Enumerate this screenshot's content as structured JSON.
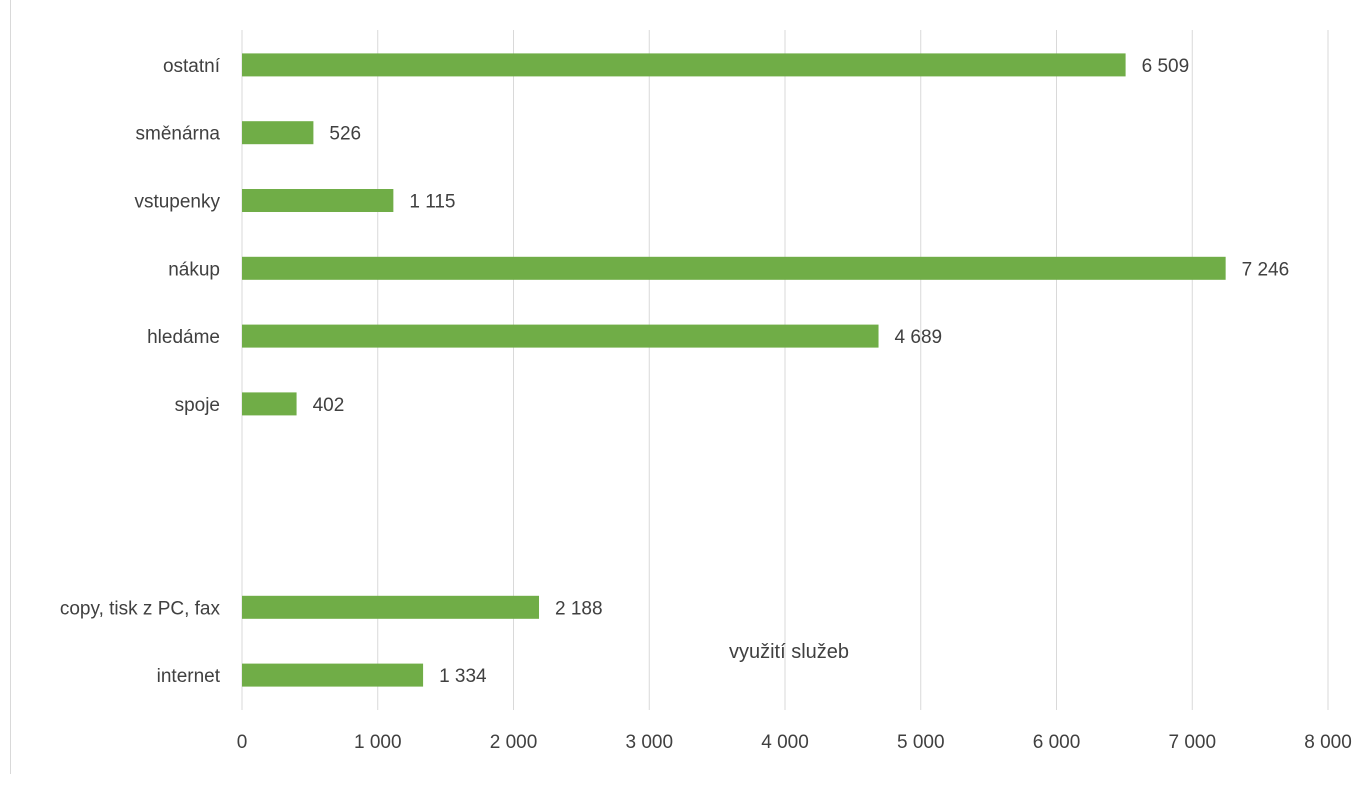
{
  "chart_data": {
    "type": "bar",
    "orientation": "horizontal",
    "categories": [
      "ostatní",
      "směnárna",
      "vstupenky",
      "nákup",
      "hledáme",
      "spoje",
      "",
      "",
      "copy, tisk z PC, fax",
      "internet"
    ],
    "values": [
      6509,
      526,
      1115,
      7246,
      4689,
      402,
      null,
      null,
      2188,
      1334
    ],
    "data_labels": [
      "6 509",
      "526",
      "1 115",
      "7 246",
      "4 689",
      "402",
      "",
      "",
      "2 188",
      "1 334"
    ],
    "xlim": [
      0,
      8000
    ],
    "x_ticks": [
      0,
      1000,
      2000,
      3000,
      4000,
      5000,
      6000,
      7000,
      8000
    ],
    "x_tick_labels": [
      "0",
      "1 000",
      "2 000",
      "3 000",
      "4 000",
      "5 000",
      "6 000",
      "7 000",
      "8 000"
    ],
    "annotation": "využití služeb",
    "grid": "vertical",
    "bar_color": "#70ad47",
    "grid_color": "#d9d9d9",
    "text_color": "#404040"
  }
}
